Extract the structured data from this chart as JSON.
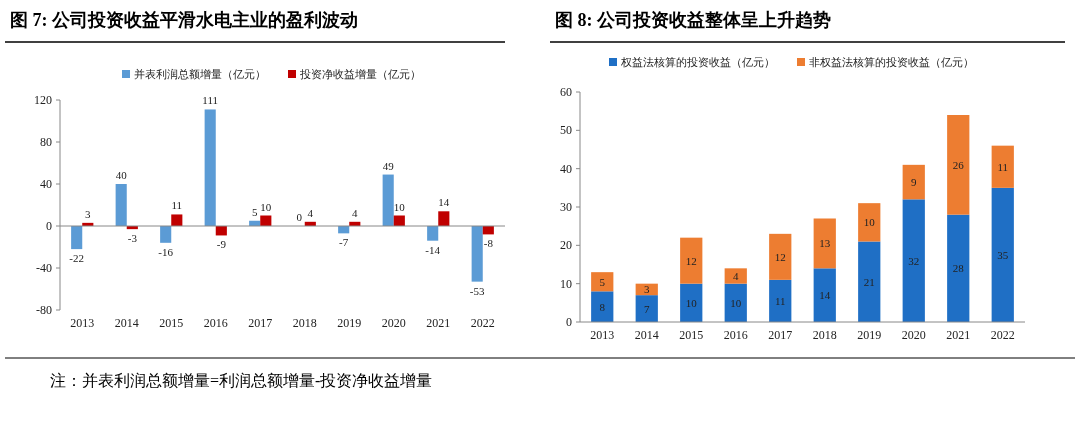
{
  "chart_data": [
    {
      "type": "bar",
      "title": "图 7: 公司投资收益平滑水电主业的盈利波动",
      "categories": [
        "2013",
        "2014",
        "2015",
        "2016",
        "2017",
        "2018",
        "2019",
        "2020",
        "2021",
        "2022"
      ],
      "series": [
        {
          "name": "并表利润总额增量（亿元）",
          "color": "#5b9bd5",
          "values": [
            -22,
            40,
            -16,
            111,
            5,
            0,
            -7,
            49,
            -14,
            -53
          ]
        },
        {
          "name": "投资净收益增量（亿元）",
          "color": "#c00000",
          "values": [
            3,
            -3,
            11,
            -9,
            10,
            4,
            4,
            10,
            14,
            -8
          ]
        }
      ],
      "ylim": [
        -80,
        120
      ],
      "yticks": [
        -80,
        -40,
        0,
        40,
        80,
        120
      ],
      "data_labels": true,
      "legend": "top",
      "annotations": [
        "注：并表利润总额增量=利润总额增量-投资净收益增量"
      ]
    },
    {
      "type": "bar",
      "title": "图 8: 公司投资收益整体呈上升趋势",
      "categories": [
        "2013",
        "2014",
        "2015",
        "2016",
        "2017",
        "2018",
        "2019",
        "2020",
        "2021",
        "2022"
      ],
      "stacked": true,
      "series": [
        {
          "name": "权益法核算的投资收益（亿元）",
          "color": "#1f6fc5",
          "values": [
            8,
            7,
            10,
            10,
            11,
            14,
            21,
            32,
            28,
            35
          ]
        },
        {
          "name": "非权益法核算的投资收益（亿元）",
          "color": "#ed7d31",
          "values": [
            5,
            3,
            12,
            4,
            12,
            13,
            10,
            9,
            26,
            11
          ]
        }
      ],
      "ylim": [
        0,
        60
      ],
      "yticks": [
        0,
        10,
        20,
        30,
        40,
        50,
        60
      ],
      "data_labels": true,
      "legend": "top"
    }
  ]
}
